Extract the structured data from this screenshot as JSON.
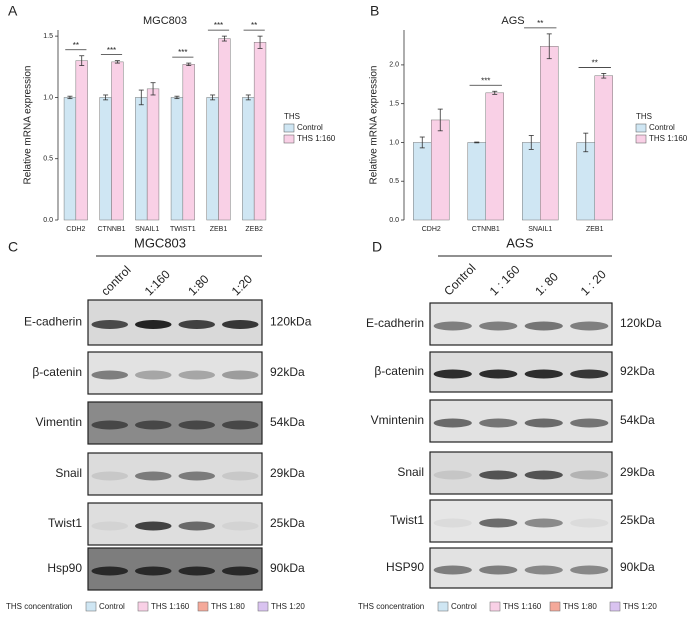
{
  "panel_labels": [
    "A",
    "B",
    "C",
    "D"
  ],
  "chart_data": [
    {
      "type": "bar",
      "title": "MGC803",
      "y_label": "Relative mRNA expression",
      "legend_title": "THS",
      "categories": [
        "CDH2",
        "CTNNB1",
        "SNAIL1",
        "TWIST1",
        "ZEB1",
        "ZEB2"
      ],
      "series": [
        {
          "name": "Control",
          "color": "#cfe6f3",
          "values": [
            1.0,
            1.0,
            1.0,
            1.0,
            1.0,
            1.0
          ],
          "errors": [
            0.01,
            0.02,
            0.06,
            0.01,
            0.02,
            0.02
          ]
        },
        {
          "name": "THS 1:160",
          "color": "#f9d0e6",
          "values": [
            1.3,
            1.29,
            1.07,
            1.27,
            1.48,
            1.45
          ],
          "errors": [
            0.04,
            0.01,
            0.05,
            0.01,
            0.02,
            0.05
          ]
        }
      ],
      "significance": [
        "**",
        "***",
        null,
        "***",
        "***",
        "**"
      ],
      "ylim": [
        0,
        1.55
      ],
      "yticks": [
        {
          "value": 0,
          "label": "0.0"
        },
        0.5,
        {
          "value": 1,
          "label": "1.0"
        },
        1.5
      ]
    },
    {
      "type": "bar",
      "title": "AGS",
      "y_label": "Relative mRNA expression",
      "legend_title": "THS",
      "categories": [
        "CDH2",
        "CTNNB1",
        "SNAIL1",
        "ZEB1"
      ],
      "series": [
        {
          "name": "Control",
          "color": "#cfe6f3",
          "values": [
            1.0,
            1.0,
            1.0,
            1.0
          ],
          "errors": [
            0.07,
            0.005,
            0.09,
            0.12
          ]
        },
        {
          "name": "THS 1:160",
          "color": "#f9d0e6",
          "values": [
            1.29,
            1.64,
            2.24,
            1.86
          ],
          "errors": [
            0.14,
            0.02,
            0.16,
            0.03
          ]
        }
      ],
      "significance": [
        null,
        "***",
        "**",
        "**"
      ],
      "ylim": [
        0,
        2.45
      ],
      "yticks": [
        {
          "value": 0,
          "label": "0.0"
        },
        0.5,
        {
          "value": 1,
          "label": "1.0"
        },
        1.5,
        {
          "value": 2,
          "label": "2.0"
        }
      ]
    }
  ],
  "blots": [
    {
      "title": "MGC803",
      "lanes": [
        "control",
        "1:160",
        "1:80",
        "1:20"
      ],
      "rows": [
        {
          "protein": "E-cadherin",
          "size": "120kDa"
        },
        {
          "protein": "β-catenin",
          "size": "92kDa"
        },
        {
          "protein": "Vimentin",
          "size": "54kDa"
        },
        {
          "protein": "Snail",
          "size": "29kDa"
        },
        {
          "protein": "Twist1",
          "size": "25kDa"
        },
        {
          "protein": "Hsp90",
          "size": "90kDa"
        }
      ]
    },
    {
      "title": "AGS",
      "lanes": [
        "Control",
        "1 : 160",
        "1: 80",
        "1 : 20"
      ],
      "rows": [
        {
          "protein": "E-cadherin",
          "size": "120kDa"
        },
        {
          "protein": "β-catenin",
          "size": "92kDa"
        },
        {
          "protein": "Vmintenin",
          "size": "54kDa"
        },
        {
          "protein": "Snail",
          "size": "29kDa"
        },
        {
          "protein": "Twist1",
          "size": "25kDa"
        },
        {
          "protein": "HSP90",
          "size": "90kDa"
        }
      ]
    }
  ],
  "legends": [
    {
      "title": "THS concentration",
      "entries": [
        {
          "label": "Control",
          "color": "#cfe6f3"
        },
        {
          "label": "THS 1:160",
          "color": "#f9d0e6"
        },
        {
          "label": "THS 1:80",
          "color": "#f4a99a"
        },
        {
          "label": "THS 1:20",
          "color": "#d9c3f0"
        }
      ]
    },
    {
      "title": "THS concentration",
      "entries": [
        {
          "label": "Control",
          "color": "#cfe6f3"
        },
        {
          "label": "THS 1:160",
          "color": "#f9d0e6"
        },
        {
          "label": "THS 1:80",
          "color": "#f4a99a"
        },
        {
          "label": "THS 1:20",
          "color": "#d9c3f0"
        }
      ]
    }
  ]
}
